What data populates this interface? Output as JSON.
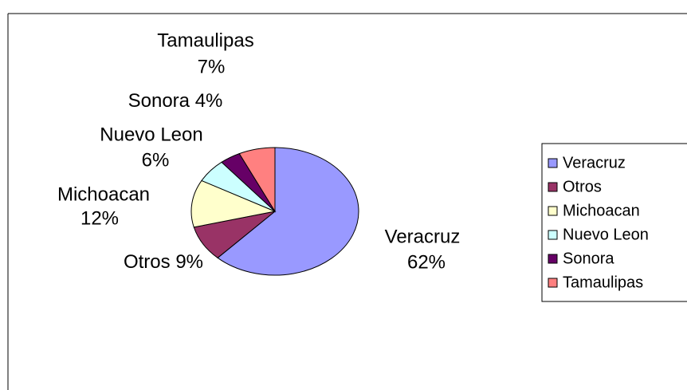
{
  "chart_data": {
    "type": "pie",
    "categories": [
      "Veracruz",
      "Otros",
      "Michoacan",
      "Nuevo Leon",
      "Sonora",
      "Tamaulipas"
    ],
    "values": [
      62,
      9,
      12,
      6,
      4,
      7
    ],
    "value_labels": [
      "62%",
      "9%",
      "12%",
      "6%",
      "4%",
      "7%"
    ],
    "colors": [
      "#9999ff",
      "#993366",
      "#ffffcc",
      "#ccffff",
      "#660066",
      "#ff8080"
    ],
    "legend": "right"
  }
}
